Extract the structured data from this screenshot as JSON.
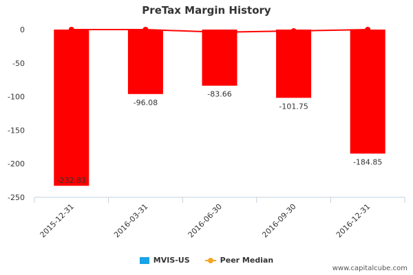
{
  "chart_data": {
    "type": "bar",
    "title": "PreTax Margin History",
    "categories": [
      "2015-12-31",
      "2016-03-31",
      "2016-06-30",
      "2016-09-30",
      "2016-12-31"
    ],
    "series": [
      {
        "name": "MVIS-US",
        "type": "bar",
        "values": [
          -232.83,
          -96.08,
          -83.66,
          -101.75,
          -184.85
        ],
        "data_labels": [
          "-232.83",
          "-96.08",
          "-83.66",
          "-101.75",
          "-184.85"
        ]
      },
      {
        "name": "Peer Median",
        "type": "line",
        "values": [
          0,
          0,
          -4,
          -2,
          0
        ]
      }
    ],
    "ylim": [
      -250,
      0
    ],
    "yticks": [
      "0",
      "-50",
      "-100",
      "-150",
      "-200",
      "-250"
    ],
    "grid": false,
    "legend_position": "bottom"
  },
  "colors": {
    "bar": "#ff0000",
    "peer_line": "#ff0000",
    "legend_bar_swatch": "#1aa3e8",
    "legend_line_swatch": "#f5a623",
    "axis": "#c0d0e0",
    "text": "#333333"
  },
  "footer": "www.capitalcube.com"
}
